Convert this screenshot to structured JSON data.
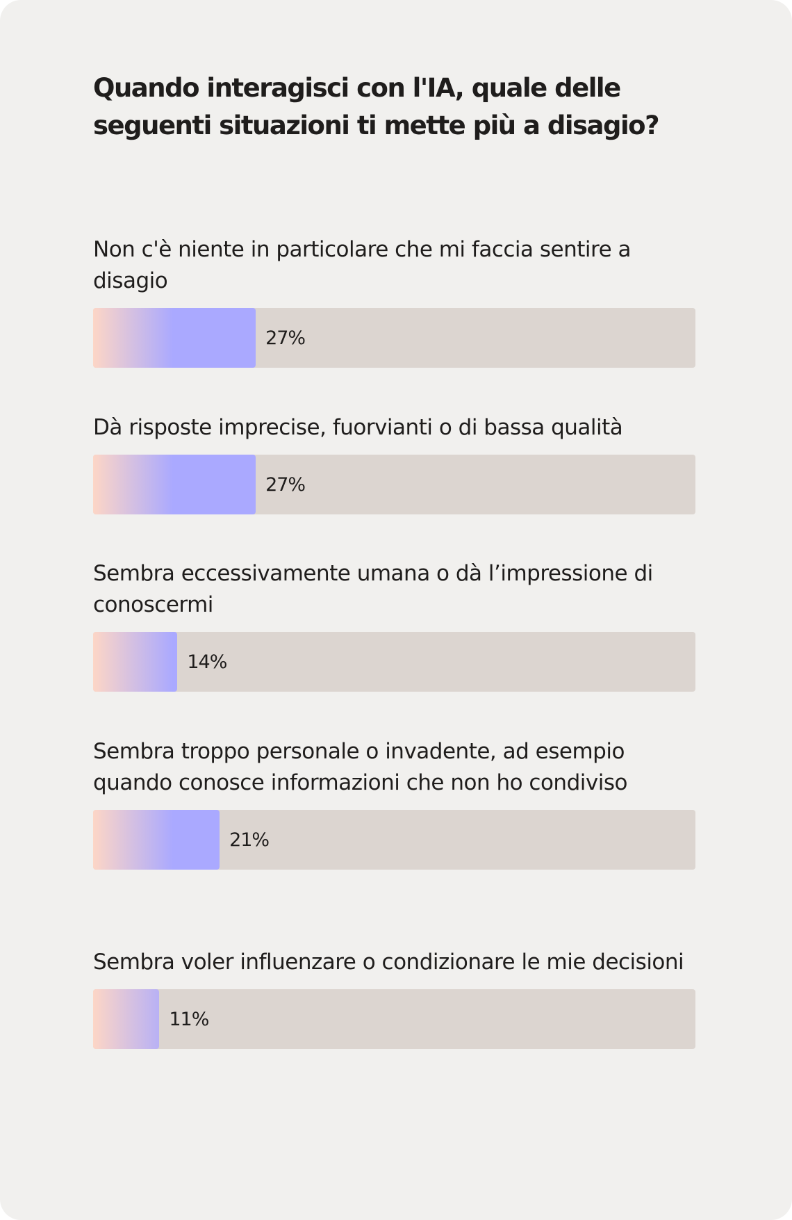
{
  "chart_data": {
    "type": "bar",
    "orientation": "horizontal",
    "title": "Quando interagisci con l'IA, quale delle seguenti situazioni ti mette più a disagio?",
    "categories": [
      "Non c'è niente in particolare che mi faccia sentire a disagio",
      "Dà risposte imprecise, fuorvianti o di bassa qualità",
      "Sembra eccessivamente umana o dà l’impressione di conoscermi",
      "Sembra troppo personale o invadente, ad esempio quando conosce informazioni che non ho condiviso",
      "Sembra voler influenzare o condizionare le mie decisioni"
    ],
    "values": [
      27,
      27,
      14,
      21,
      11
    ],
    "value_labels": [
      "27%",
      "27%",
      "14%",
      "21%",
      "11%"
    ],
    "color": "#aaa9ff",
    "xlim": [
      0,
      100
    ]
  }
}
